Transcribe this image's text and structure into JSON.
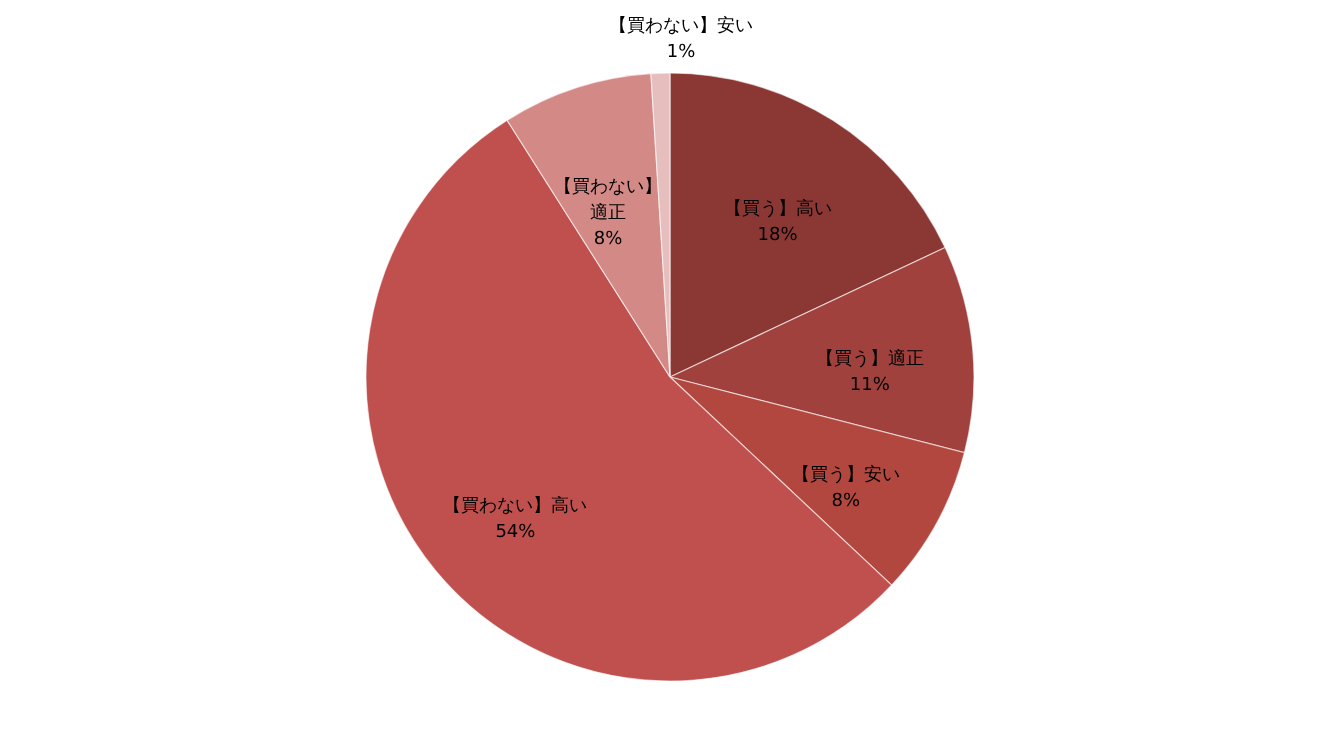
{
  "chart_data": {
    "type": "pie",
    "categories": [
      "【買う】高い",
      "【買う】適正",
      "【買う】安い",
      "【買わない】高い",
      "【買わない】適正",
      "【買わない】安い"
    ],
    "values": [
      18,
      11,
      8,
      54,
      8,
      1
    ],
    "colors": [
      "#8b3835",
      "#a0413d",
      "#b2473f",
      "#c0504d",
      "#d38985",
      "#e6bebd"
    ],
    "value_labels": [
      "18%",
      "11%",
      "8%",
      "54%",
      "8%",
      "1%"
    ]
  }
}
